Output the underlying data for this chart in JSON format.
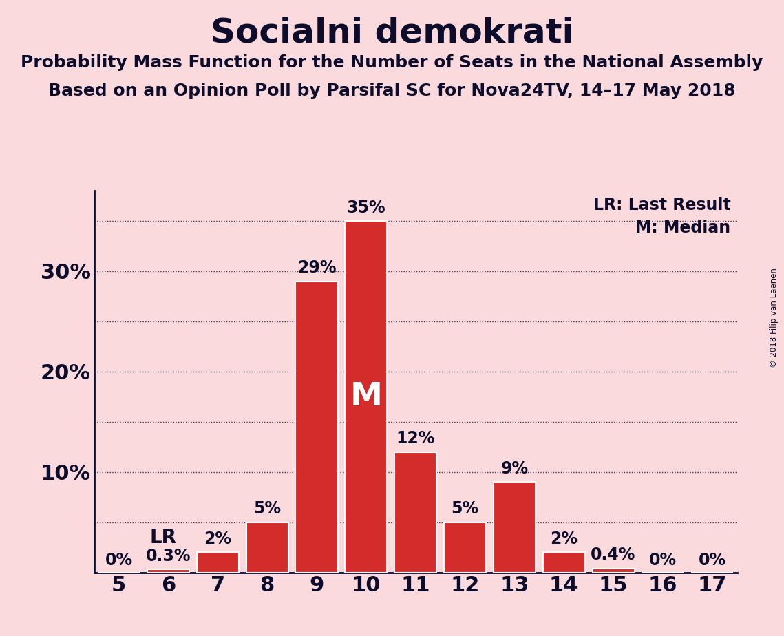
{
  "title": "Socialni demokrati",
  "subtitle1": "Probability Mass Function for the Number of Seats in the National Assembly",
  "subtitle2": "Based on an Opinion Poll by Parsifal SC for Nova24TV, 14–17 May 2018",
  "copyright": "© 2018 Filip van Laenen",
  "seats": [
    5,
    6,
    7,
    8,
    9,
    10,
    11,
    12,
    13,
    14,
    15,
    16,
    17
  ],
  "probabilities": [
    0.0,
    0.3,
    2.0,
    5.0,
    29.0,
    35.0,
    12.0,
    5.0,
    9.0,
    2.0,
    0.4,
    0.0,
    0.0
  ],
  "bar_color": "#d42b2b",
  "bar_edge_color": "#ffffff",
  "background_color": "#fadadd",
  "text_color": "#0d0d2b",
  "lr_seat": 6,
  "median_seat": 10,
  "ylim": [
    0,
    38
  ],
  "grid_y": [
    5,
    10,
    15,
    20,
    25,
    30,
    35
  ],
  "ytick_positions": [
    10,
    20,
    30
  ],
  "ytick_labels": [
    "10%",
    "20%",
    "30%"
  ],
  "legend_lr": "LR: Last Result",
  "legend_m": "M: Median",
  "bar_labels": [
    "0%",
    "0.3%",
    "2%",
    "5%",
    "29%",
    "35%",
    "12%",
    "5%",
    "9%",
    "2%",
    "0.4%",
    "0%",
    "0%"
  ]
}
